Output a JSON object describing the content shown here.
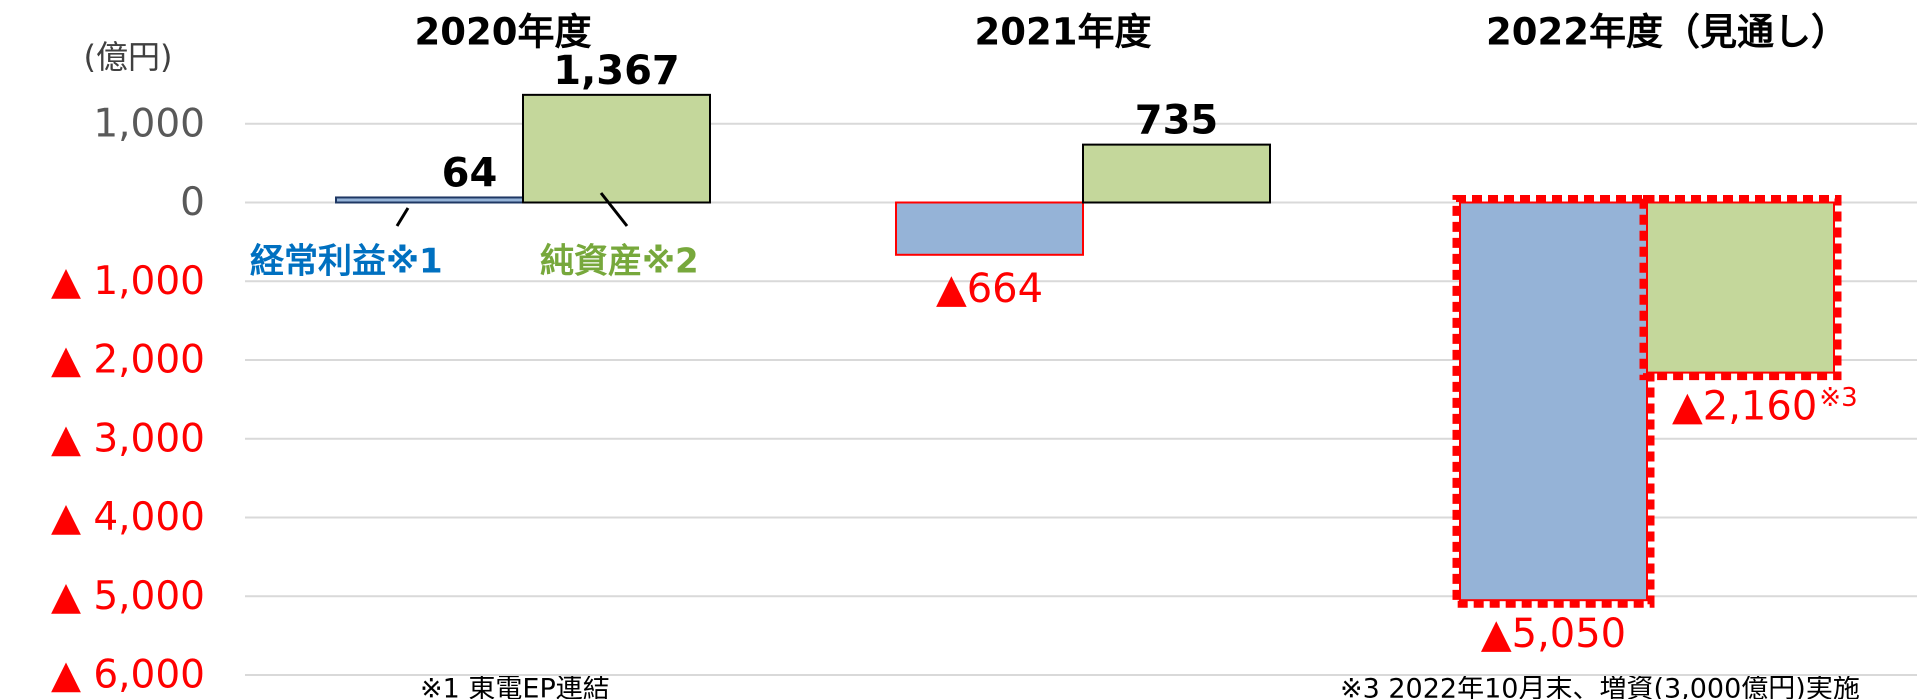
{
  "chart_data": {
    "type": "bar",
    "unit_label": "(億円)",
    "categories": [
      "2020年度",
      "2021年度",
      "2022年度（見通し）"
    ],
    "series": [
      {
        "name": "経常利益※1",
        "color": "#95b3d7",
        "values": [
          64,
          -664,
          -5050
        ],
        "value_labels": [
          "64",
          "▲664",
          "▲5,050"
        ]
      },
      {
        "name": "純資産※2",
        "color": "#c4d79b",
        "values": [
          1367,
          735,
          -2160
        ],
        "value_labels": [
          "1,367",
          "735",
          "▲2,160"
        ]
      }
    ],
    "annotations": [
      "※3"
    ],
    "footnotes": [
      "※1 東電EP連結",
      "※3 2022年10月末、増資(3,000億円)実施"
    ],
    "ylim": [
      -6000,
      2000
    ],
    "yticks": [
      {
        "value": 1000,
        "label": "1,000"
      },
      0,
      {
        "value": -1000,
        "label": "▲ 1,000"
      },
      {
        "value": -2000,
        "label": "▲ 2,000"
      },
      {
        "value": -3000,
        "label": "▲ 3,000"
      },
      {
        "value": -4000,
        "label": "▲ 4,000"
      },
      {
        "value": -5000,
        "label": "▲ 5,000"
      },
      {
        "value": -6000,
        "label": "▲ 6,000"
      }
    ],
    "grid": true
  }
}
